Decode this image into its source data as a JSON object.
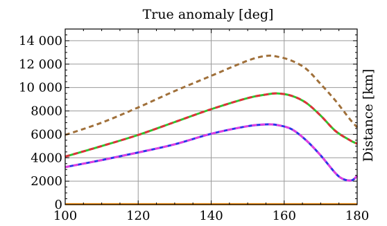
{
  "chart_data": {
    "type": "line",
    "title": "True anomaly [deg]",
    "xlabel": "",
    "ylabel": "Distance [km]",
    "xlim": [
      100,
      180
    ],
    "ylim": [
      0,
      15000
    ],
    "x_ticks": [
      100,
      120,
      140,
      160,
      180
    ],
    "x_tick_labels": [
      "100",
      "120",
      "140",
      "160",
      "180"
    ],
    "y_ticks": [
      0,
      2000,
      4000,
      6000,
      8000,
      10000,
      12000,
      14000
    ],
    "y_tick_labels": [
      "0",
      "2000",
      "4000",
      "6000",
      "8000",
      "10 000",
      "12 000",
      "14 000"
    ],
    "grid": true,
    "series": [
      {
        "color": "#a0703a",
        "dash": "dashed",
        "points": [
          [
            100,
            5950
          ],
          [
            110,
            7000
          ],
          [
            120,
            8300
          ],
          [
            130,
            9700
          ],
          [
            140,
            11000
          ],
          [
            150,
            12300
          ],
          [
            155,
            12700
          ],
          [
            158,
            12650
          ],
          [
            162,
            12300
          ],
          [
            166,
            11600
          ],
          [
            170,
            10300
          ],
          [
            174,
            8900
          ],
          [
            178,
            7300
          ],
          [
            180,
            6600
          ]
        ]
      },
      {
        "color": "#2ec52e",
        "dash": "solid",
        "points": [
          [
            100,
            4100
          ],
          [
            110,
            5000
          ],
          [
            120,
            5950
          ],
          [
            130,
            7050
          ],
          [
            140,
            8150
          ],
          [
            150,
            9100
          ],
          [
            155,
            9400
          ],
          [
            158,
            9500
          ],
          [
            162,
            9300
          ],
          [
            166,
            8700
          ],
          [
            170,
            7600
          ],
          [
            174,
            6300
          ],
          [
            178,
            5500
          ],
          [
            180,
            5200
          ]
        ]
      },
      {
        "color": "#e0303a",
        "dash": "dashed",
        "points": [
          [
            100,
            4100
          ],
          [
            110,
            5000
          ],
          [
            120,
            5950
          ],
          [
            130,
            7050
          ],
          [
            140,
            8150
          ],
          [
            150,
            9100
          ],
          [
            155,
            9400
          ],
          [
            158,
            9500
          ],
          [
            162,
            9300
          ],
          [
            166,
            8700
          ],
          [
            170,
            7600
          ],
          [
            174,
            6300
          ],
          [
            178,
            5500
          ],
          [
            180,
            5200
          ]
        ]
      },
      {
        "color": "#2a36e8",
        "dash": "solid",
        "points": [
          [
            100,
            3200
          ],
          [
            110,
            3800
          ],
          [
            120,
            4450
          ],
          [
            130,
            5150
          ],
          [
            140,
            6050
          ],
          [
            150,
            6700
          ],
          [
            155,
            6850
          ],
          [
            158,
            6800
          ],
          [
            162,
            6450
          ],
          [
            166,
            5500
          ],
          [
            170,
            4200
          ],
          [
            174,
            2700
          ],
          [
            176,
            2200
          ],
          [
            178,
            2050
          ],
          [
            179,
            2150
          ],
          [
            180,
            2450
          ]
        ]
      },
      {
        "color": "#e040e0",
        "dash": "dashed",
        "points": [
          [
            100,
            3200
          ],
          [
            110,
            3800
          ],
          [
            120,
            4450
          ],
          [
            130,
            5150
          ],
          [
            140,
            6050
          ],
          [
            150,
            6700
          ],
          [
            155,
            6850
          ],
          [
            158,
            6800
          ],
          [
            162,
            6450
          ],
          [
            166,
            5500
          ],
          [
            170,
            4200
          ],
          [
            174,
            2700
          ],
          [
            176,
            2200
          ],
          [
            178,
            2050
          ],
          [
            179,
            2150
          ],
          [
            180,
            2450
          ]
        ]
      },
      {
        "color": "#f0901a",
        "dash": "solid",
        "points": [
          [
            100,
            40
          ],
          [
            120,
            40
          ],
          [
            140,
            40
          ],
          [
            160,
            40
          ],
          [
            180,
            40
          ]
        ]
      }
    ]
  }
}
